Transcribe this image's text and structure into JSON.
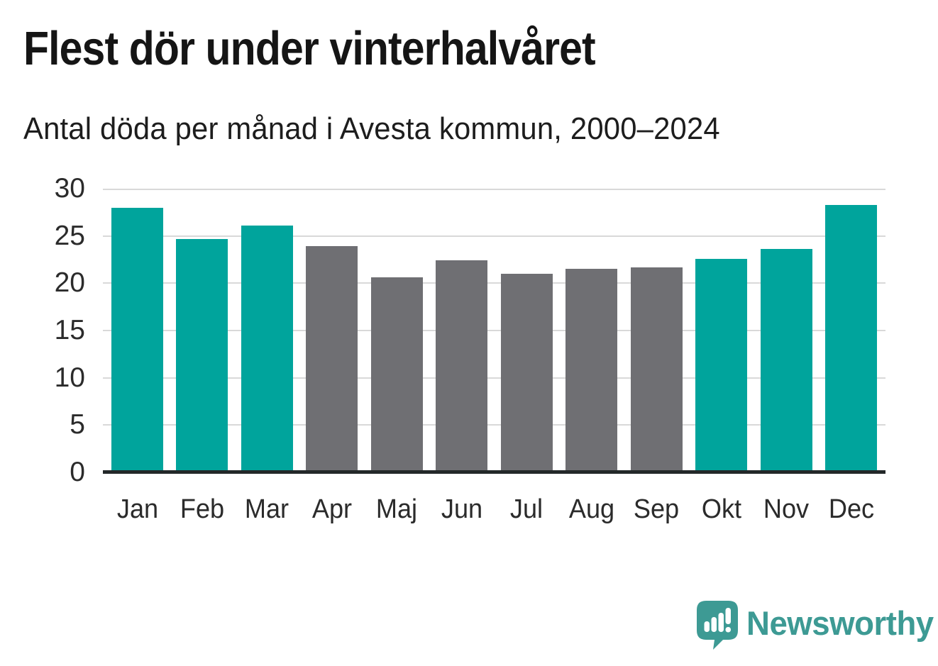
{
  "chart_data": {
    "type": "bar",
    "title": "Flest dör under vinterhalvåret",
    "subtitle": "Antal döda per månad i Avesta kommun, 2000–2024",
    "categories": [
      "Jan",
      "Feb",
      "Mar",
      "Apr",
      "Maj",
      "Jun",
      "Jul",
      "Aug",
      "Sep",
      "Okt",
      "Nov",
      "Dec"
    ],
    "values": [
      28.0,
      24.7,
      26.1,
      23.9,
      20.6,
      22.4,
      21.0,
      21.5,
      21.7,
      22.6,
      23.6,
      28.3
    ],
    "bar_colors": [
      "#00A49C",
      "#00A49C",
      "#00A49C",
      "#6F6F73",
      "#6F6F73",
      "#6F6F73",
      "#6F6F73",
      "#6F6F73",
      "#6F6F73",
      "#00A49C",
      "#00A49C",
      "#00A49C"
    ],
    "palette": {
      "winter_accent": "#00A49C",
      "summer_gray": "#6F6F73"
    },
    "xlabel": "",
    "ylabel": "",
    "ylim": [
      0,
      30
    ],
    "yticks": [
      0,
      5,
      10,
      15,
      20,
      25,
      30
    ],
    "grid": "horizontal",
    "grid_color": "#D9D9D9",
    "axis_color": "#232829",
    "legend": "none"
  },
  "footer": {
    "brand": "Newsworthy",
    "brand_color": "#3D9A94",
    "logo_icon": "newsworthy-speech-bubble-bar-chart-icon"
  }
}
